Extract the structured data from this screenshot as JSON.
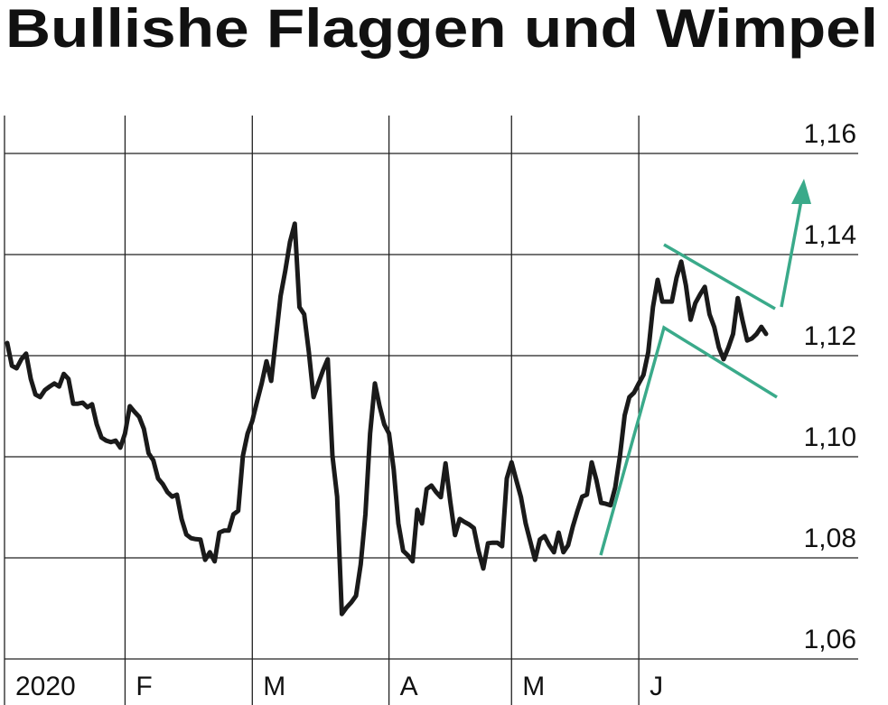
{
  "chart_data": {
    "type": "line",
    "title": "Bullishe Flaggen und Wimpel",
    "categories": [
      "2020",
      null,
      null,
      null,
      null,
      null,
      null,
      null,
      null,
      null,
      null,
      null,
      null,
      null,
      null,
      null,
      null,
      null,
      null,
      null,
      null,
      null,
      null,
      null,
      null,
      "F",
      null,
      null,
      null,
      null,
      null,
      null,
      null,
      null,
      null,
      null,
      null,
      null,
      null,
      null,
      null,
      null,
      null,
      null,
      null,
      null,
      null,
      null,
      null,
      null,
      null,
      null,
      "M",
      null,
      null,
      null,
      null,
      null,
      null,
      null,
      null,
      null,
      null,
      null,
      null,
      null,
      null,
      null,
      null,
      null,
      null,
      null,
      null,
      null,
      null,
      null,
      null,
      null,
      null,
      null,
      null,
      "A",
      null,
      null,
      null,
      null,
      null,
      null,
      null,
      null,
      null,
      null,
      null,
      null,
      null,
      null,
      null,
      null,
      null,
      null,
      null,
      null,
      null,
      null,
      null,
      null,
      null,
      "M",
      null,
      null,
      null,
      null,
      null,
      null,
      null,
      null,
      null,
      null,
      null,
      null,
      null,
      null,
      null,
      null,
      null,
      null,
      null,
      null,
      null,
      null,
      null,
      null,
      null,
      null,
      "J",
      null,
      null,
      null,
      null,
      null,
      null,
      null,
      null,
      null,
      null,
      null,
      null,
      null,
      null,
      null,
      null,
      null,
      null,
      null,
      null,
      null,
      null,
      null,
      null,
      null,
      null,
      null
    ],
    "values": [
      1.1225,
      1.118,
      1.1175,
      1.1193,
      1.1204,
      1.1154,
      1.1123,
      1.1118,
      1.1132,
      1.1139,
      1.1145,
      1.1139,
      1.1164,
      1.1154,
      1.1105,
      1.1105,
      1.1107,
      1.1098,
      1.1104,
      1.1064,
      1.1038,
      1.1032,
      1.1029,
      1.1032,
      1.1018,
      1.1046,
      1.11,
      1.1089,
      1.1079,
      1.1055,
      1.1007,
      1.0993,
      1.0957,
      1.0946,
      1.093,
      1.0921,
      1.0925,
      1.0877,
      1.0846,
      1.0839,
      1.0837,
      1.0836,
      1.0796,
      1.0811,
      1.0793,
      1.085,
      1.0854,
      1.0854,
      1.0886,
      1.0893,
      1.1002,
      1.1046,
      1.1071,
      1.1109,
      1.1145,
      1.1189,
      1.115,
      1.1234,
      1.1318,
      1.1368,
      1.1425,
      1.1461,
      1.1296,
      1.1282,
      1.1207,
      1.1118,
      1.1145,
      1.1171,
      1.1193,
      1.1002,
      1.0921,
      1.0689,
      1.0702,
      1.0712,
      1.0725,
      1.0787,
      1.0886,
      1.1046,
      1.1145,
      1.11,
      1.1064,
      1.1046,
      1.0975,
      1.0868,
      1.0814,
      1.0805,
      1.0793,
      1.0895,
      1.0868,
      1.0936,
      1.0943,
      1.093,
      1.092,
      1.0987,
      1.0912,
      1.0845,
      1.0877,
      1.0871,
      1.0866,
      1.0859,
      1.0814,
      1.0779,
      1.0829,
      1.083,
      1.083,
      1.0823,
      1.0957,
      1.0989,
      1.0954,
      1.092,
      1.0868,
      1.0832,
      1.0796,
      1.0836,
      1.0843,
      1.0825,
      1.0811,
      1.085,
      1.0811,
      1.0825,
      1.0862,
      1.0893,
      1.0921,
      1.0925,
      1.0989,
      1.0954,
      1.0909,
      1.0907,
      1.0904,
      1.0939,
      1.1002,
      1.1082,
      1.1118,
      1.1127,
      1.1145,
      1.1162,
      1.1207,
      1.1296,
      1.135,
      1.1307,
      1.1307,
      1.1307,
      1.1354,
      1.1386,
      1.1339,
      1.1271,
      1.1304,
      1.1321,
      1.1336,
      1.1282,
      1.1257,
      1.1216,
      1.1193,
      1.1216,
      1.1243,
      1.1314,
      1.127,
      1.123,
      1.1234,
      1.1243,
      1.1257,
      1.1243
    ],
    "color": "#1a1a1a",
    "ylim": [
      1.06,
      1.1675
    ],
    "yticks": [
      {
        "value": 1.06,
        "label": "1,06"
      },
      {
        "value": 1.08,
        "label": "1,08"
      },
      {
        "value": 1.1,
        "label": "1,10"
      },
      {
        "value": 1.12,
        "label": "1,12"
      },
      {
        "value": 1.14,
        "label": "1,14"
      },
      {
        "value": 1.16,
        "label": "1,16"
      }
    ],
    "grid": true
  }
}
